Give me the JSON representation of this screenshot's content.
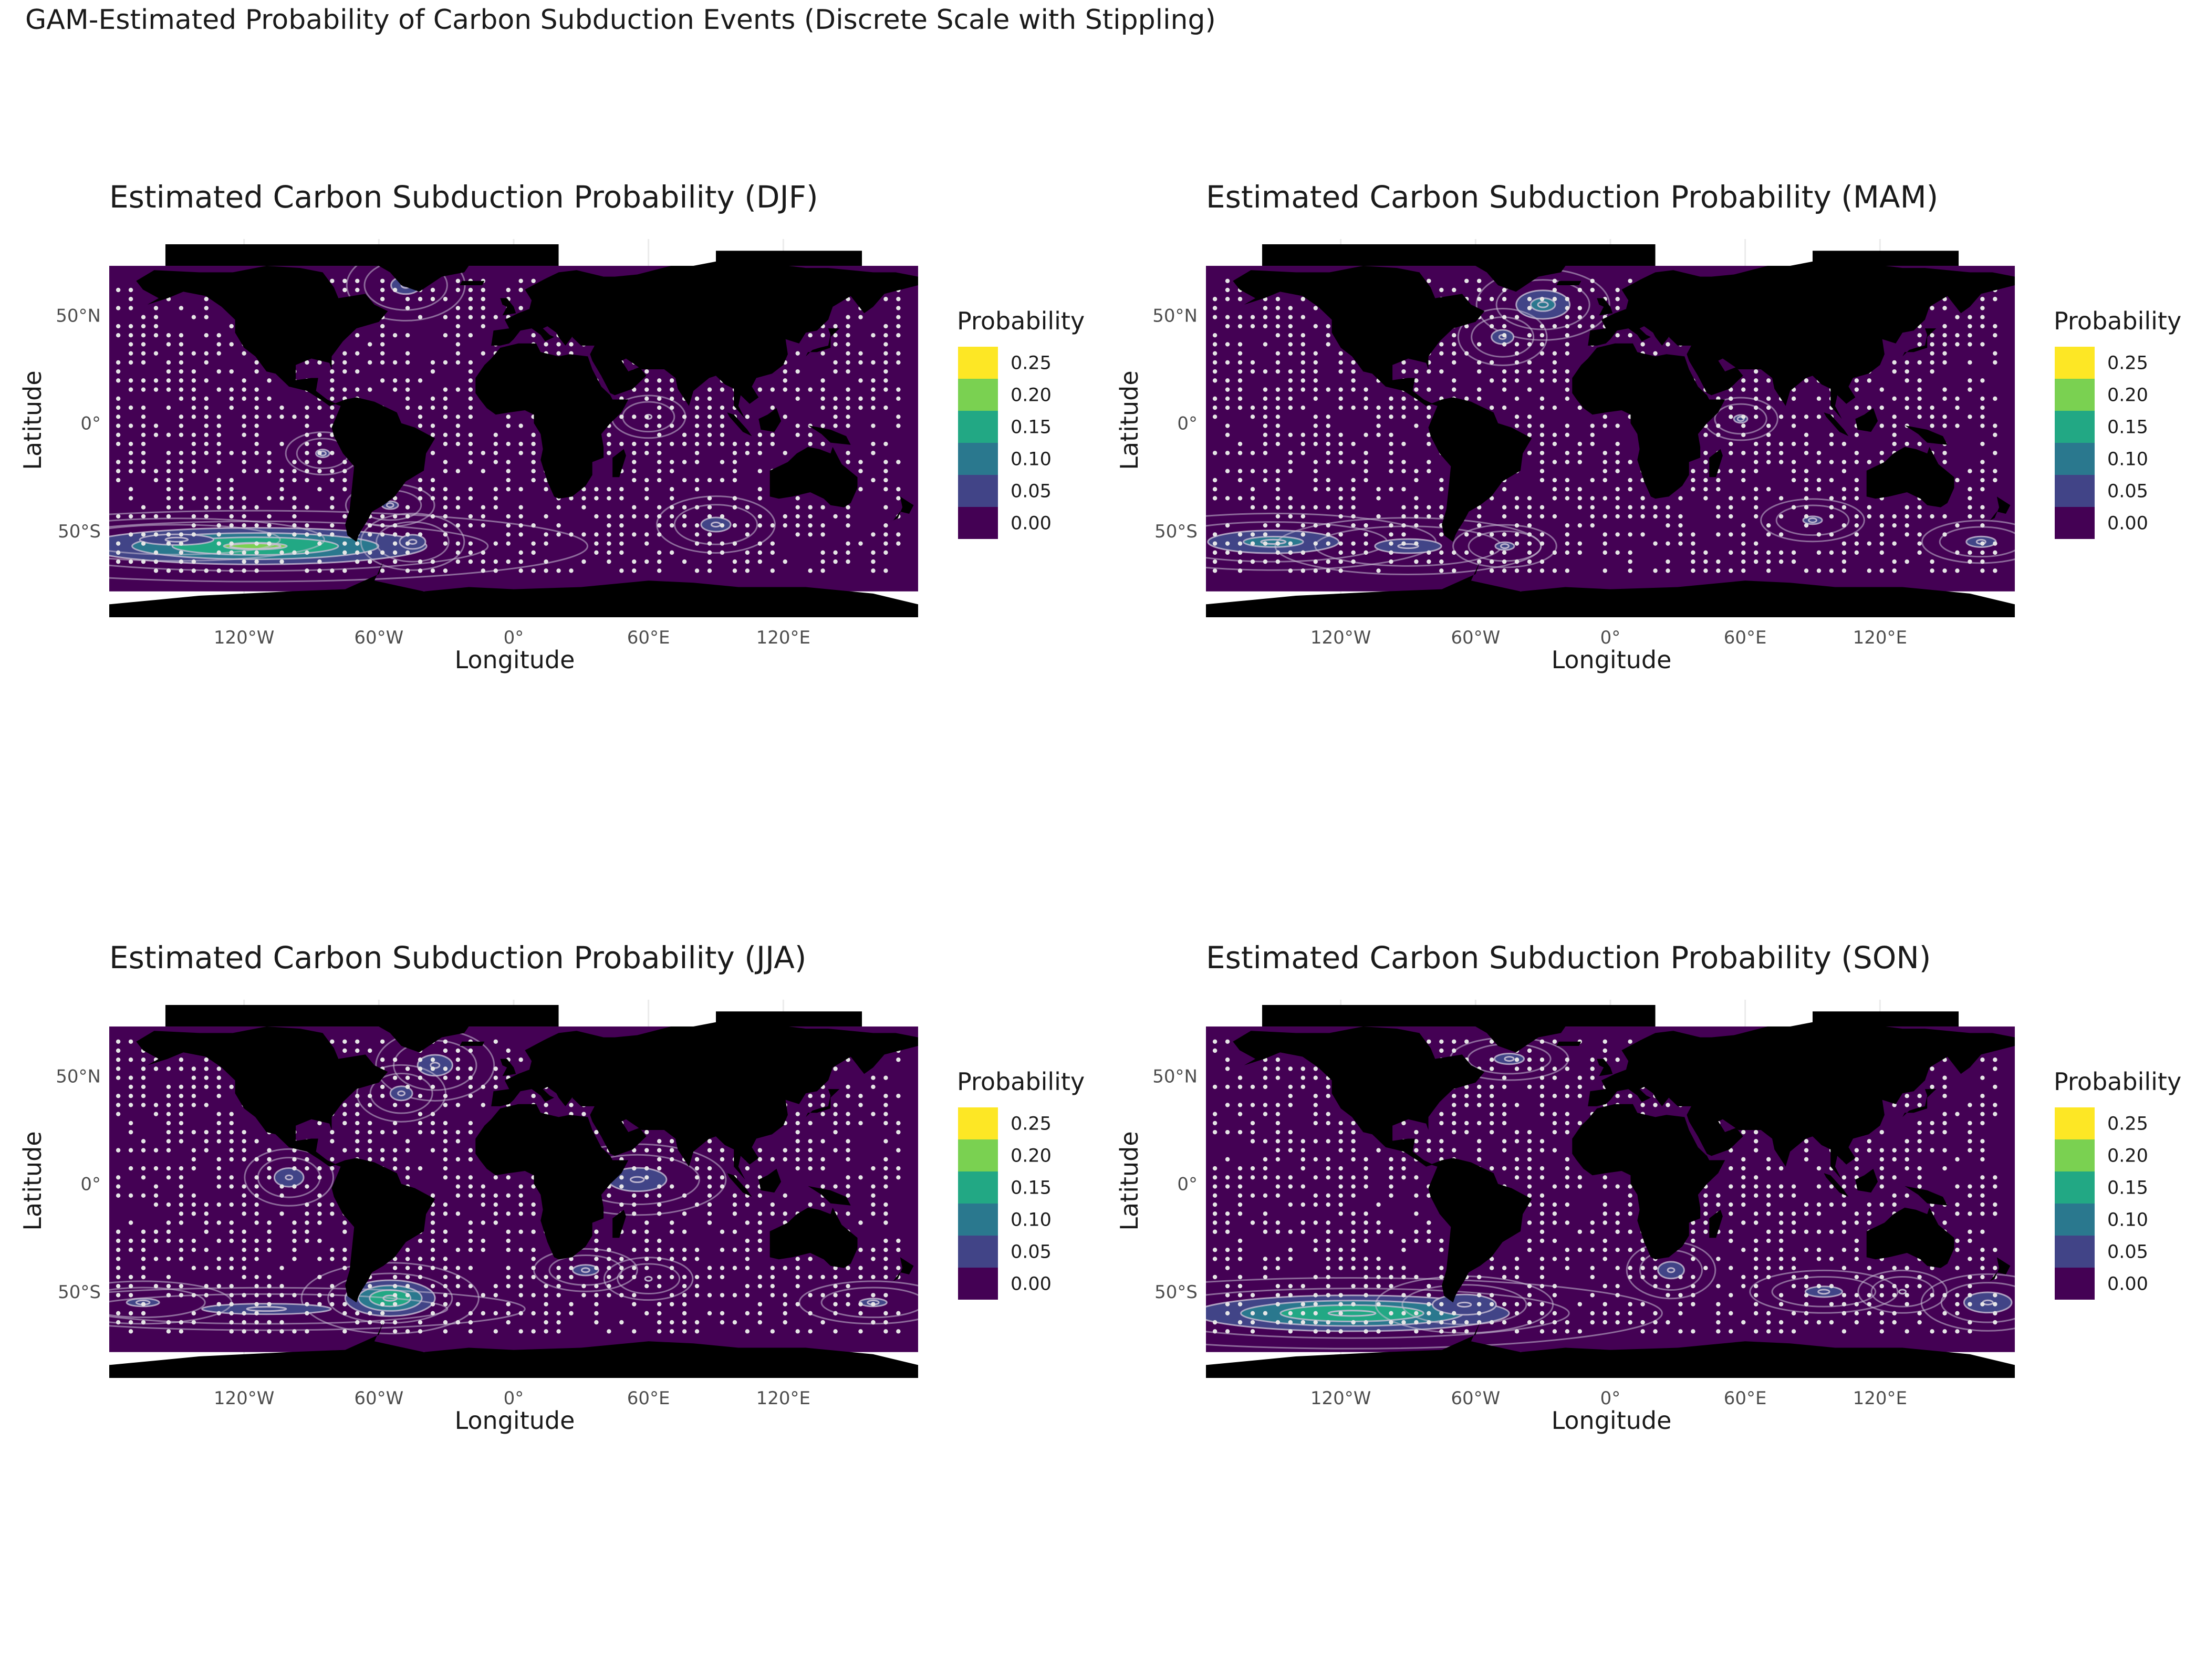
{
  "main_title": "GAM-Estimated Probability of Carbon Subduction Events (Discrete Scale with Stippling)",
  "colors": {
    "ocean": "#440154",
    "land": "#000000",
    "contour": "#c8bfd4",
    "stipple": "#e6e6e6",
    "scale": [
      "#440154",
      "#414487",
      "#2a788e",
      "#22a884",
      "#7ad151",
      "#fde725"
    ]
  },
  "chart_data": [
    {
      "type": "heatmap",
      "season": "DJF",
      "title": "Estimated Carbon Subduction Probability (DJF)",
      "xlabel": "Longitude",
      "ylabel": "Latitude",
      "x_ticks": [
        "120°W",
        "60°W",
        "0°",
        "60°E",
        "120°E"
      ],
      "x_tick_values": [
        -120,
        -60,
        0,
        60,
        120
      ],
      "y_ticks": [
        "50°N",
        "0°",
        "50°S"
      ],
      "y_tick_values": [
        50,
        0,
        -50
      ],
      "xlim": [
        -180,
        180
      ],
      "ylim": [
        -90,
        83
      ],
      "legend": {
        "title": "Probability",
        "labels": [
          "0.00",
          "0.05",
          "0.10",
          "0.15",
          "0.20",
          "0.25"
        ],
        "position": "right"
      },
      "hotspots": [
        {
          "lon": -115,
          "lat": -57,
          "sx": 45,
          "sy": 5,
          "peak": 0.21
        },
        {
          "lon": -150,
          "lat": -54,
          "sx": 20,
          "sy": 3,
          "peak": 0.07
        },
        {
          "lon": -48,
          "lat": 64,
          "sx": 8,
          "sy": 5,
          "peak": 0.07
        },
        {
          "lon": -85,
          "lat": -14,
          "sx": 5,
          "sy": 3,
          "peak": 0.06
        },
        {
          "lon": -55,
          "lat": -38,
          "sx": 6,
          "sy": 3,
          "peak": 0.06
        },
        {
          "lon": -45,
          "lat": -55,
          "sx": 7,
          "sy": 4,
          "peak": 0.07
        },
        {
          "lon": 60,
          "lat": 3,
          "sx": 5,
          "sy": 3,
          "peak": 0.05
        },
        {
          "lon": 90,
          "lat": -47,
          "sx": 8,
          "sy": 4,
          "peak": 0.07
        }
      ]
    },
    {
      "type": "heatmap",
      "season": "MAM",
      "title": "Estimated Carbon Subduction Probability (MAM)",
      "xlabel": "Longitude",
      "ylabel": "Latitude",
      "x_ticks": [
        "120°W",
        "60°W",
        "0°",
        "60°E",
        "120°E"
      ],
      "x_tick_values": [
        -120,
        -60,
        0,
        60,
        120
      ],
      "y_ticks": [
        "50°N",
        "0°",
        "50°S"
      ],
      "y_tick_values": [
        50,
        0,
        -50
      ],
      "xlim": [
        -180,
        180
      ],
      "ylim": [
        -90,
        83
      ],
      "legend": {
        "title": "Probability",
        "labels": [
          "0.00",
          "0.05",
          "0.10",
          "0.15",
          "0.20",
          "0.25"
        ],
        "position": "right"
      },
      "hotspots": [
        {
          "lon": -150,
          "lat": -55,
          "sx": 22,
          "sy": 4,
          "peak": 0.12
        },
        {
          "lon": -90,
          "lat": -57,
          "sx": 18,
          "sy": 4,
          "peak": 0.07
        },
        {
          "lon": -30,
          "lat": 55,
          "sx": 9,
          "sy": 5,
          "peak": 0.12
        },
        {
          "lon": -48,
          "lat": 40,
          "sx": 6,
          "sy": 4,
          "peak": 0.07
        },
        {
          "lon": -47,
          "lat": -57,
          "sx": 7,
          "sy": 3,
          "peak": 0.06
        },
        {
          "lon": 58,
          "lat": 2,
          "sx": 5,
          "sy": 3,
          "peak": 0.06
        },
        {
          "lon": 90,
          "lat": -45,
          "sx": 7,
          "sy": 3,
          "peak": 0.06
        },
        {
          "lon": 165,
          "lat": -55,
          "sx": 8,
          "sy": 3,
          "peak": 0.07
        }
      ]
    },
    {
      "type": "heatmap",
      "season": "JJA",
      "title": "Estimated Carbon Subduction Probability (JJA)",
      "xlabel": "Longitude",
      "ylabel": "Latitude",
      "x_ticks": [
        "120°W",
        "60°W",
        "0°",
        "60°E",
        "120°E"
      ],
      "x_tick_values": [
        -120,
        -60,
        0,
        60,
        120
      ],
      "y_ticks": [
        "50°N",
        "0°",
        "50°S"
      ],
      "y_tick_values": [
        50,
        0,
        -50
      ],
      "xlim": [
        -180,
        180
      ],
      "ylim": [
        -90,
        83
      ],
      "legend": {
        "title": "Probability",
        "labels": [
          "0.00",
          "0.05",
          "0.10",
          "0.15",
          "0.20",
          "0.25"
        ],
        "position": "right"
      },
      "hotspots": [
        {
          "lon": -55,
          "lat": -53,
          "sx": 12,
          "sy": 5,
          "peak": 0.2
        },
        {
          "lon": -110,
          "lat": -58,
          "sx": 35,
          "sy": 3,
          "peak": 0.07
        },
        {
          "lon": -165,
          "lat": -55,
          "sx": 12,
          "sy": 3,
          "peak": 0.06
        },
        {
          "lon": -35,
          "lat": 55,
          "sx": 8,
          "sy": 5,
          "peak": 0.08
        },
        {
          "lon": -50,
          "lat": 42,
          "sx": 6,
          "sy": 4,
          "peak": 0.07
        },
        {
          "lon": -100,
          "lat": 3,
          "sx": 6,
          "sy": 4,
          "peak": 0.09
        },
        {
          "lon": 55,
          "lat": 2,
          "sx": 12,
          "sy": 5,
          "peak": 0.09
        },
        {
          "lon": 32,
          "lat": -40,
          "sx": 7,
          "sy": 3,
          "peak": 0.07
        },
        {
          "lon": 60,
          "lat": -44,
          "sx": 6,
          "sy": 3,
          "peak": 0.05
        },
        {
          "lon": 160,
          "lat": -55,
          "sx": 10,
          "sy": 3,
          "peak": 0.06
        }
      ]
    },
    {
      "type": "heatmap",
      "season": "SON",
      "title": "Estimated Carbon Subduction Probability (SON)",
      "xlabel": "Longitude",
      "ylabel": "Latitude",
      "x_ticks": [
        "120°W",
        "60°W",
        "0°",
        "60°E",
        "120°E"
      ],
      "x_tick_values": [
        -120,
        -60,
        0,
        60,
        120
      ],
      "y_ticks": [
        "50°N",
        "0°",
        "50°S"
      ],
      "y_tick_values": [
        50,
        0,
        -50
      ],
      "xlim": [
        -180,
        180
      ],
      "ylim": [
        -90,
        83
      ],
      "legend": {
        "title": "Probability",
        "labels": [
          "0.00",
          "0.05",
          "0.10",
          "0.15",
          "0.20",
          "0.25"
        ],
        "position": "right"
      },
      "hotspots": [
        {
          "lon": -115,
          "lat": -60,
          "sx": 42,
          "sy": 5,
          "peak": 0.2
        },
        {
          "lon": -65,
          "lat": -56,
          "sx": 12,
          "sy": 4,
          "peak": 0.1
        },
        {
          "lon": -45,
          "lat": 58,
          "sx": 8,
          "sy": 3,
          "peak": 0.07
        },
        {
          "lon": 27,
          "lat": -40,
          "sx": 6,
          "sy": 4,
          "peak": 0.08
        },
        {
          "lon": 95,
          "lat": -50,
          "sx": 10,
          "sy": 3,
          "peak": 0.07
        },
        {
          "lon": 130,
          "lat": -50,
          "sx": 6,
          "sy": 3,
          "peak": 0.05
        },
        {
          "lon": 168,
          "lat": -55,
          "sx": 9,
          "sy": 4,
          "peak": 0.1
        }
      ]
    }
  ]
}
